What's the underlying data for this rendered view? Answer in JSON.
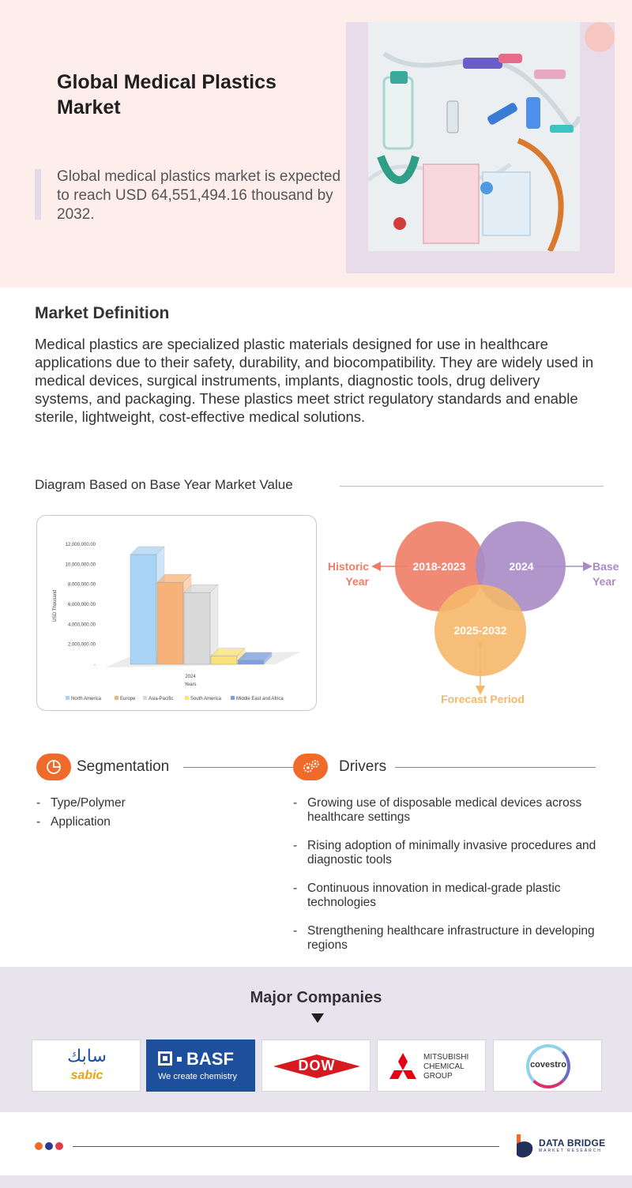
{
  "hero": {
    "title": "Global Medical Plastics Market",
    "description": "Global medical plastics market is expected to reach USD 64,551,494.16 thousand by 2032."
  },
  "market_definition": {
    "title": "Market Definition",
    "body": "Medical plastics are specialized plastic materials designed for use in healthcare applications due to their safety, durability, and biocompatibility. They are widely used in medical devices, surgical instruments, implants, diagnostic tools, drug delivery systems, and packaging. These plastics meet strict regulatory standards and enable sterile, lightweight, cost-effective medical solutions."
  },
  "diagram": {
    "title": "Diagram Based on Base Year Market Value"
  },
  "chart_data": {
    "type": "bar",
    "title": "",
    "categories": [
      "2024"
    ],
    "xlabel": "Years",
    "ylabel": "USD Thousand",
    "ylim": [
      0,
      12000000
    ],
    "yticks": [
      "-",
      "2,000,000.00",
      "4,000,000.00",
      "6,000,000.00",
      "8,000,000.00",
      "10,000,000.00",
      "12,000,000.00"
    ],
    "legend_position": "bottom",
    "series": [
      {
        "name": "North America",
        "values": [
          11000000
        ],
        "color": "#a9d3f5"
      },
      {
        "name": "Europe",
        "values": [
          8300000
        ],
        "color": "#f7b27a"
      },
      {
        "name": "Asia-Pacific",
        "values": [
          7300000
        ],
        "color": "#d9d9d9"
      },
      {
        "name": "South America",
        "values": [
          1100000
        ],
        "color": "#f9e27a"
      },
      {
        "name": "Middle East and Africa",
        "values": [
          700000
        ],
        "color": "#7d9fe0"
      }
    ]
  },
  "venn": {
    "historic_period": "2018-2023",
    "base_period": "2024",
    "forecast_period": "2025-2032",
    "historic_label_1": "Historic",
    "historic_label_2": "Year",
    "base_label_1": "Base",
    "base_label_2": "Year",
    "forecast_label": "Forecast Period",
    "colors": {
      "historic": "#ef7d66",
      "base": "#a98bc7",
      "forecast": "#f5b76a"
    }
  },
  "segmentation": {
    "title": "Segmentation",
    "items": [
      "Type/Polymer",
      "Application"
    ]
  },
  "drivers": {
    "title": "Drivers",
    "items": [
      "Growing use of disposable medical devices across healthcare settings",
      "Rising adoption of minimally invasive procedures and diagnostic tools",
      "Continuous innovation in medical-grade plastic technologies",
      "Strengthening healthcare infrastructure in developing regions"
    ]
  },
  "companies": {
    "title": "Major Companies",
    "sabic_arabic": "سابك",
    "sabic": "sabic",
    "basf": "BASF",
    "basf_tagline": "We create chemistry",
    "dow": "DOW",
    "mitsubishi_1": "MITSUBISHI",
    "mitsubishi_2": "CHEMICAL",
    "mitsubishi_3": "GROUP",
    "covestro": "covestro"
  },
  "footer": {
    "brand_name": "DATA BRIDGE",
    "brand_sub": "MARKET RESEARCH",
    "dot_colors": [
      "#f06a2a",
      "#2b3a8c",
      "#e23b4a"
    ]
  }
}
